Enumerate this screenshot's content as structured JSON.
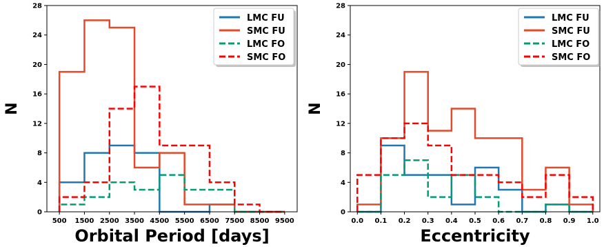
{
  "chart_data": [
    {
      "type": "step-histogram",
      "xlabel": "Orbital Period [days]",
      "ylabel": "N",
      "xlim": [
        0,
        10000
      ],
      "ylim": [
        0,
        28
      ],
      "xticks": [
        500,
        1500,
        2500,
        3500,
        4500,
        5500,
        6500,
        7500,
        8500,
        9500
      ],
      "yticks": [
        0,
        4,
        8,
        12,
        16,
        20,
        24,
        28
      ],
      "legend": "top-right",
      "series": [
        {
          "name": "LMC FU",
          "color": "#1f77b4",
          "dash": "solid",
          "edges": [
            500,
            1500,
            2500,
            3500,
            4500,
            5500,
            6500,
            7500,
            8500,
            9500
          ],
          "counts": [
            4,
            8,
            9,
            8,
            0,
            0,
            1,
            0,
            0
          ]
        },
        {
          "name": "SMC FU",
          "color": "#e24a2b",
          "dash": "solid",
          "edges": [
            500,
            1500,
            2500,
            3500,
            4500,
            5500,
            6500,
            7500,
            8500,
            9500
          ],
          "counts": [
            19,
            26,
            25,
            6,
            8,
            1,
            1,
            0,
            0
          ]
        },
        {
          "name": "LMC FO",
          "color": "#009e73",
          "dash": "dashed",
          "edges": [
            500,
            1500,
            2500,
            3500,
            4500,
            5500,
            6500,
            7500,
            8500,
            9500
          ],
          "counts": [
            1,
            2,
            4,
            3,
            5,
            3,
            3,
            0,
            0
          ]
        },
        {
          "name": "SMC FO",
          "color": "#ff0000",
          "dash": "dashed",
          "edges": [
            500,
            1500,
            2500,
            3500,
            4500,
            5500,
            6500,
            7500,
            8500,
            9500
          ],
          "counts": [
            2,
            4,
            14,
            17,
            9,
            9,
            4,
            1,
            0
          ]
        }
      ]
    },
    {
      "type": "step-histogram",
      "xlabel": "Eccentricity",
      "ylabel": "N",
      "xlim": [
        -0.03,
        1.03
      ],
      "ylim": [
        0,
        28
      ],
      "xticks": [
        0.0,
        0.1,
        0.2,
        0.3,
        0.4,
        0.5,
        0.6,
        0.7,
        0.8,
        0.9,
        1.0
      ],
      "xticklabels": [
        "0.0",
        "0.1",
        "0.2",
        "0.3",
        "0.4",
        "0.5",
        "0.6",
        "0.7",
        "0.8",
        "0.9",
        "1.0"
      ],
      "yticks": [
        0,
        4,
        8,
        12,
        16,
        20,
        24,
        28
      ],
      "legend": "top-right",
      "series": [
        {
          "name": "LMC FU",
          "color": "#1f77b4",
          "dash": "solid",
          "edges": [
            0.0,
            0.1,
            0.2,
            0.3,
            0.4,
            0.5,
            0.6,
            0.7,
            0.8,
            0.9,
            1.0
          ],
          "counts": [
            0,
            9,
            5,
            5,
            1,
            6,
            3,
            0,
            1,
            0
          ]
        },
        {
          "name": "SMC FU",
          "color": "#e24a2b",
          "dash": "solid",
          "edges": [
            0.0,
            0.1,
            0.2,
            0.3,
            0.4,
            0.5,
            0.6,
            0.7,
            0.8,
            0.9,
            1.0
          ],
          "counts": [
            1,
            10,
            19,
            11,
            14,
            10,
            10,
            3,
            6,
            1
          ]
        },
        {
          "name": "LMC FO",
          "color": "#009e73",
          "dash": "dashed",
          "edges": [
            0.0,
            0.1,
            0.2,
            0.3,
            0.4,
            0.5,
            0.6,
            0.7,
            0.8,
            0.9,
            1.0
          ],
          "counts": [
            0,
            5,
            7,
            2,
            5,
            2,
            0,
            0,
            1,
            0
          ]
        },
        {
          "name": "SMC FO",
          "color": "#ff0000",
          "dash": "dashed",
          "edges": [
            0.0,
            0.1,
            0.2,
            0.3,
            0.4,
            0.5,
            0.6,
            0.7,
            0.8,
            0.9,
            1.0
          ],
          "counts": [
            5,
            10,
            12,
            9,
            5,
            5,
            4,
            2,
            5,
            2
          ]
        }
      ]
    }
  ]
}
